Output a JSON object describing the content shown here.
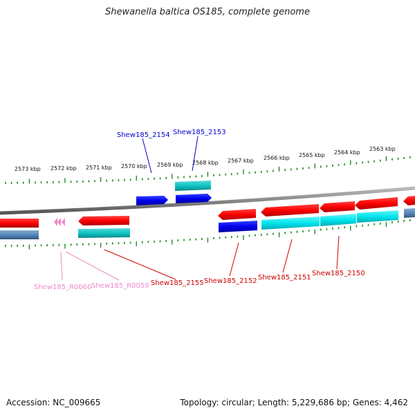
{
  "title": "Shewanella baltica OS185, complete genome",
  "footer": {
    "accession": "Accession: NC_009665",
    "summary": "Topology: circular; Length: 5,229,686 bp; Genes: 4,462"
  },
  "ticks": [
    {
      "label": "2573 kbp"
    },
    {
      "label": "2572 kbp"
    },
    {
      "label": "2571 kbp"
    },
    {
      "label": "2570 kbp"
    },
    {
      "label": "2569 kbp"
    },
    {
      "label": "2568 kbp"
    },
    {
      "label": "2567 kbp"
    },
    {
      "label": "2566 kbp"
    },
    {
      "label": "2565 kbp"
    },
    {
      "label": "2564 kbp"
    },
    {
      "label": "2563 kbp"
    }
  ],
  "genes": [
    {
      "label": "Shew185_2154",
      "color": "#0000cc"
    },
    {
      "label": "Shew185_2153",
      "color": "#0000cc"
    },
    {
      "label": "Shew185_R0060",
      "color": "#ee88cc"
    },
    {
      "label": "Shew185_R0059",
      "color": "#ee88cc"
    },
    {
      "label": "Shew185_2155",
      "color": "#cc0000"
    },
    {
      "label": "Shew185_2152",
      "color": "#cc0000"
    },
    {
      "label": "Shew185_2151",
      "color": "#cc0000"
    },
    {
      "label": "Shew185_2150",
      "color": "#cc0000"
    }
  ],
  "colors": {
    "cds_forward": "#ff0000",
    "cds_reverse_blue": "#0000ee",
    "gene_cyan": "#00e5ee",
    "gene_teal": "#11c4c4",
    "gene_steel": "#5588bb",
    "trna_pink": "#ee88cc",
    "backbone": "#888888",
    "tick_green": "#228822"
  }
}
